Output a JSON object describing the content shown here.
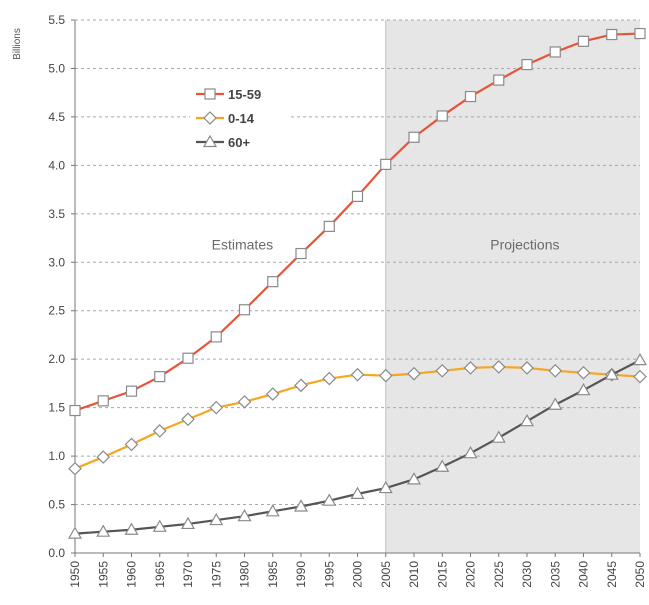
{
  "chart_data": {
    "type": "line",
    "ylabel": "Billions",
    "ylim": [
      0,
      5.5
    ],
    "yticks": [
      "0.0",
      "0.5",
      "1.0",
      "1.5",
      "2.0",
      "2.5",
      "3.0",
      "3.5",
      "4.0",
      "4.5",
      "5.0",
      "5.5"
    ],
    "x": [
      1950,
      1955,
      1960,
      1965,
      1970,
      1975,
      1980,
      1985,
      1990,
      1995,
      2000,
      2005,
      2010,
      2015,
      2020,
      2025,
      2030,
      2035,
      2040,
      2045,
      2050
    ],
    "xticks": [
      "1950",
      "1955",
      "1960",
      "1965",
      "1970",
      "1975",
      "1980",
      "1985",
      "1990",
      "1995",
      "2000",
      "2005",
      "2010",
      "2015",
      "2020",
      "2025",
      "2030",
      "2035",
      "2040",
      "2045",
      "2050"
    ],
    "grid": true,
    "legend_position": "top-left",
    "regions": [
      {
        "label": "Estimates",
        "from": 1950,
        "to": 2005,
        "shaded": false
      },
      {
        "label": "Projections",
        "from": 2005,
        "to": 2050,
        "shaded": true,
        "color": "#e6e6e6"
      }
    ],
    "series": [
      {
        "name": "15-59",
        "marker": "square",
        "color": "#e8543a",
        "values": [
          1.47,
          1.57,
          1.67,
          1.82,
          2.01,
          2.23,
          2.51,
          2.8,
          3.09,
          3.37,
          3.68,
          4.01,
          4.29,
          4.51,
          4.71,
          4.88,
          5.04,
          5.17,
          5.28,
          5.35,
          5.36
        ]
      },
      {
        "name": "0-14",
        "marker": "diamond",
        "color": "#f5a623",
        "values": [
          0.87,
          0.99,
          1.12,
          1.26,
          1.38,
          1.5,
          1.56,
          1.64,
          1.73,
          1.8,
          1.84,
          1.83,
          1.85,
          1.88,
          1.91,
          1.92,
          1.91,
          1.88,
          1.86,
          1.84,
          1.82
        ]
      },
      {
        "name": "60+",
        "marker": "triangle",
        "color": "#555555",
        "values": [
          0.2,
          0.22,
          0.24,
          0.27,
          0.3,
          0.34,
          0.38,
          0.43,
          0.48,
          0.54,
          0.61,
          0.67,
          0.76,
          0.89,
          1.03,
          1.19,
          1.36,
          1.53,
          1.68,
          1.84,
          1.99
        ]
      }
    ]
  }
}
